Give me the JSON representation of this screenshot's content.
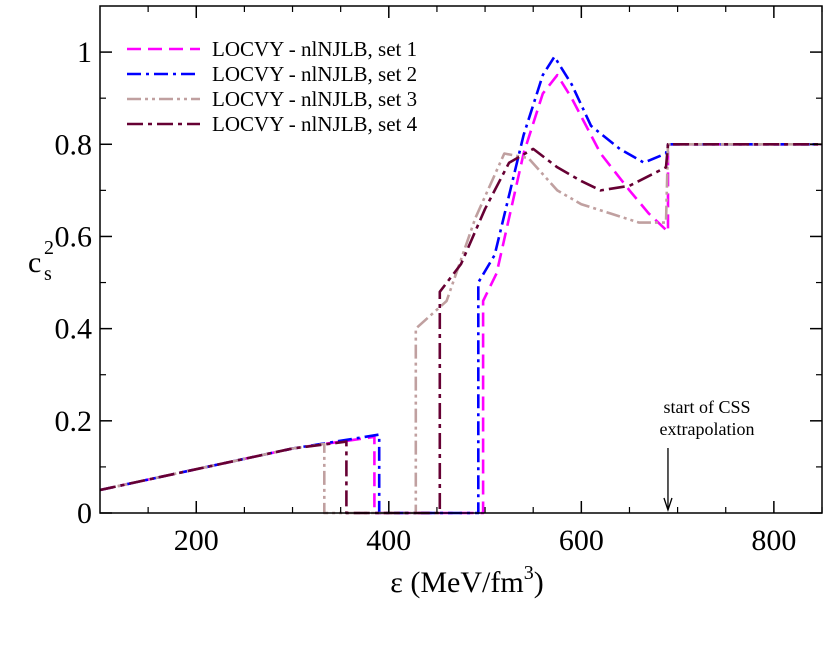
{
  "chart_data": {
    "type": "line",
    "xlabel": "ε (MeV/fm³)",
    "xlabel_main": "ε (MeV/fm",
    "xlabel_sup": "3",
    "xlabel_close": ")",
    "ylabel_base": "c",
    "ylabel_sub": "s",
    "ylabel_sup": "2",
    "xlim": [
      100,
      850
    ],
    "ylim": [
      0,
      1.1
    ],
    "x_ticks": [
      200,
      400,
      600,
      800
    ],
    "x_tick_labels": [
      "200",
      "400",
      "600",
      "800"
    ],
    "y_ticks": [
      0,
      0.2,
      0.4,
      0.6,
      0.8,
      1.0
    ],
    "y_tick_labels": [
      "0",
      "0.2",
      "0.4",
      "0.6",
      "0.8",
      "1"
    ],
    "grid": false,
    "legend_position": "top-left",
    "annotation": {
      "lines": [
        "start of CSS",
        "extrapolation"
      ],
      "arrow_x": 690,
      "arrow_from_y": 0.15,
      "arrow_to_y": 0.0
    },
    "series": [
      {
        "name": "LOCVY - nlNJLB, set 1",
        "color": "#ff00ff",
        "dash": "14,7",
        "x": [
          100,
          200,
          300,
          385,
          385,
          498,
          498,
          512,
          540,
          560,
          575,
          590,
          620,
          650,
          670,
          690,
          690,
          850
        ],
        "y": [
          0.05,
          0.095,
          0.14,
          0.165,
          0.0,
          0.0,
          0.46,
          0.52,
          0.78,
          0.91,
          0.95,
          0.9,
          0.78,
          0.7,
          0.65,
          0.61,
          0.8,
          0.8
        ]
      },
      {
        "name": "LOCVY - nlNJLB, set 2",
        "color": "#0000ff",
        "dash": "14,5,3,5",
        "x": [
          100,
          200,
          300,
          390,
          390,
          493,
          493,
          510,
          540,
          560,
          572,
          590,
          610,
          640,
          665,
          688,
          690,
          850
        ],
        "y": [
          0.05,
          0.095,
          0.14,
          0.17,
          0.0,
          0.0,
          0.5,
          0.56,
          0.82,
          0.95,
          0.99,
          0.93,
          0.84,
          0.79,
          0.76,
          0.78,
          0.8,
          0.8
        ]
      },
      {
        "name": "LOCVY - nlNJLB, set 3",
        "color": "#c0a0a0",
        "dash": "14,4,3,4,3,4",
        "x": [
          100,
          200,
          300,
          333,
          333,
          428,
          428,
          460,
          490,
          520,
          545,
          575,
          600,
          630,
          660,
          688,
          690,
          850
        ],
        "y": [
          0.05,
          0.095,
          0.14,
          0.15,
          0.0,
          0.0,
          0.4,
          0.46,
          0.64,
          0.78,
          0.77,
          0.7,
          0.67,
          0.65,
          0.63,
          0.63,
          0.8,
          0.8
        ]
      },
      {
        "name": "LOCVY - nlNJLB, set 4",
        "color": "#660033",
        "dash": "16,5,4,5",
        "x": [
          100,
          200,
          300,
          356,
          356,
          453,
          453,
          475,
          500,
          525,
          550,
          575,
          600,
          620,
          650,
          688,
          690,
          850
        ],
        "y": [
          0.05,
          0.095,
          0.14,
          0.155,
          0.0,
          0.0,
          0.48,
          0.54,
          0.66,
          0.76,
          0.79,
          0.75,
          0.72,
          0.7,
          0.71,
          0.75,
          0.8,
          0.8
        ]
      }
    ]
  }
}
